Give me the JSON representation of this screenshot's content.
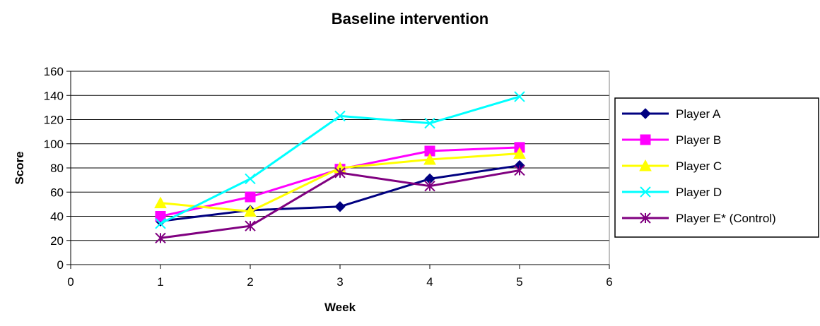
{
  "chart_data": {
    "type": "line",
    "title": "Baseline intervention",
    "xlabel": "Week",
    "ylabel": "Score",
    "xlim": [
      0,
      6
    ],
    "ylim": [
      0,
      160
    ],
    "xticks": [
      "0",
      "1",
      "2",
      "3",
      "4",
      "5",
      "6"
    ],
    "yticks": [
      "0",
      "20",
      "40",
      "60",
      "80",
      "100",
      "120",
      "140",
      "160"
    ],
    "grid": "horizontal",
    "legend_position": "right",
    "x": [
      1,
      2,
      3,
      4,
      5
    ],
    "series": [
      {
        "name": "Player A",
        "values": [
          36,
          45,
          48,
          71,
          82
        ],
        "color": "#000080",
        "marker": "diamond"
      },
      {
        "name": "Player B",
        "values": [
          40,
          56,
          79,
          94,
          97
        ],
        "color": "#FF00FF",
        "marker": "square"
      },
      {
        "name": "Player C",
        "values": [
          51,
          44,
          80,
          87,
          92
        ],
        "color": "#FFFF00",
        "marker": "triangle"
      },
      {
        "name": "Player D",
        "values": [
          34,
          71,
          123,
          117,
          139
        ],
        "color": "#00FFFF",
        "marker": "x"
      },
      {
        "name": "Player E* (Control)",
        "values": [
          22,
          32,
          76,
          65,
          78
        ],
        "color": "#800080",
        "marker": "star"
      }
    ]
  }
}
